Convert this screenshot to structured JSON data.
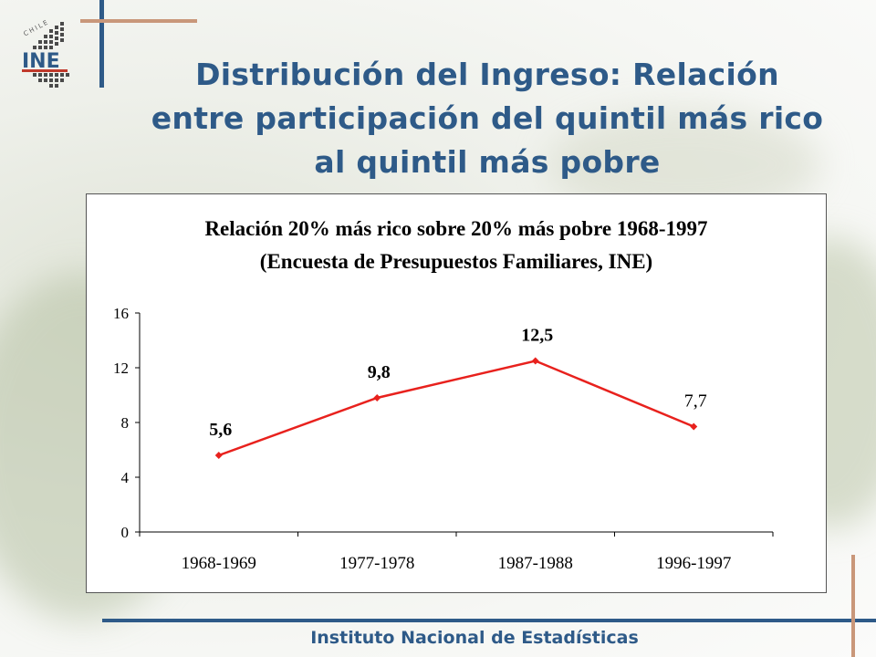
{
  "slide": {
    "title_lines": [
      "Distribución del Ingreso: Relación",
      "entre participación del quintil más rico",
      "al quintil más pobre"
    ],
    "footer": "Instituto Nacional de Estadísticas",
    "logo_text": "INE",
    "logo_caption": "CHILE"
  },
  "colors": {
    "title": "#2e5a88",
    "accent_bar": "#2e5a88",
    "accent_tan": "#c9977a",
    "series": "#e8211d"
  },
  "chart_data": {
    "type": "line",
    "title_lines": [
      "Relación 20% más rico sobre 20% más pobre 1968-1997",
      "(Encuesta de Presupuestos Familiares, INE)"
    ],
    "categories": [
      "1968-1969",
      "1977-1978",
      "1987-1988",
      "1996-1997"
    ],
    "series": [
      {
        "values": [
          5.6,
          9.8,
          12.5,
          7.7
        ],
        "labels": [
          "5,6",
          "9,8",
          "12,5",
          "7,7"
        ]
      }
    ],
    "ylim": [
      0,
      16
    ],
    "yticks": [
      0,
      4,
      8,
      12,
      16
    ],
    "ytick_labels": [
      "0",
      "4",
      "8",
      "12",
      "16"
    ],
    "grid": false,
    "legend": "none"
  }
}
